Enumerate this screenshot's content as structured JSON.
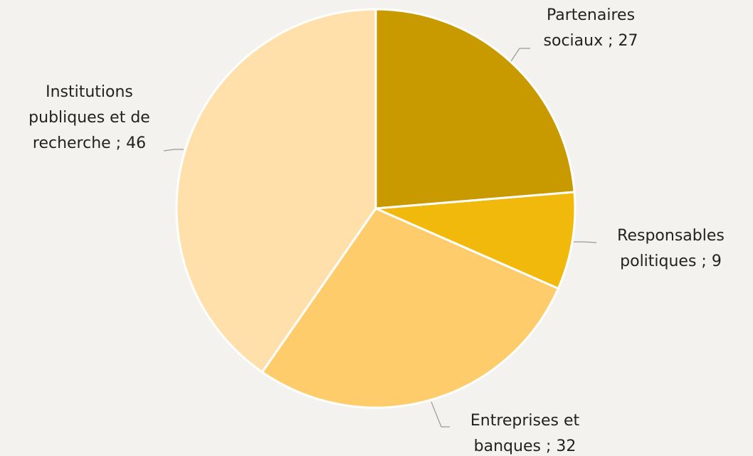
{
  "chart_data": {
    "type": "pie",
    "categories": [
      "Partenaires sociaux",
      "Responsables politiques",
      "Entreprises et banques",
      "Institutions publiques et de recherche"
    ],
    "values": [
      27,
      9,
      32,
      46
    ],
    "value_labels": [
      "Partenaires sociaux ; 27",
      "Responsables politiques ; 9",
      "Entreprises et banques ; 32",
      "Institutions publiques et de recherche ; 46"
    ],
    "colors": [
      "#c99a00",
      "#f0b90b",
      "#ffcc6b",
      "#ffe0aa"
    ]
  }
}
